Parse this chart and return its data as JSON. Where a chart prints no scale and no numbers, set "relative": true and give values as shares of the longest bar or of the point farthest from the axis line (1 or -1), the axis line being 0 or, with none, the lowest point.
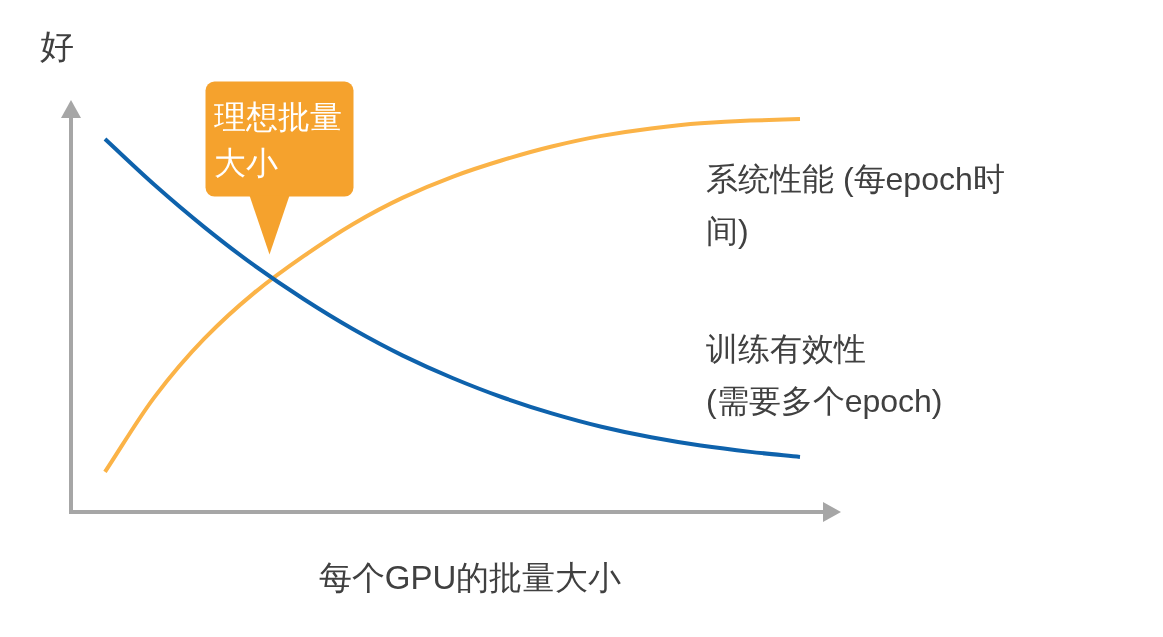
{
  "chart_data": {
    "type": "line",
    "relative": true,
    "ylabel": "好",
    "xlabel": "每个GPU的批量大小",
    "categories": [
      null,
      null,
      null,
      null,
      null,
      null,
      null,
      null,
      null,
      null,
      null,
      null,
      null,
      null,
      null
    ],
    "series": [
      {
        "name": "系统性能 (每epoch时间)",
        "color": "#fbb347",
        "values": [
          0.102,
          0.293,
          0.441,
          0.557,
          0.651,
          0.733,
          0.8,
          0.853,
          0.895,
          0.93,
          0.957,
          0.976,
          0.989,
          0.996,
          1
        ]
      },
      {
        "name": "训练有效性 (需要多个epoch)",
        "color": "#0e62ac",
        "values": [
          0.949,
          0.832,
          0.725,
          0.628,
          0.542,
          0.465,
          0.398,
          0.341,
          0.292,
          0.251,
          0.217,
          0.19,
          0.169,
          0.153,
          0.14
        ]
      }
    ],
    "annotations": [
      "理想批量大小"
    ]
  }
}
